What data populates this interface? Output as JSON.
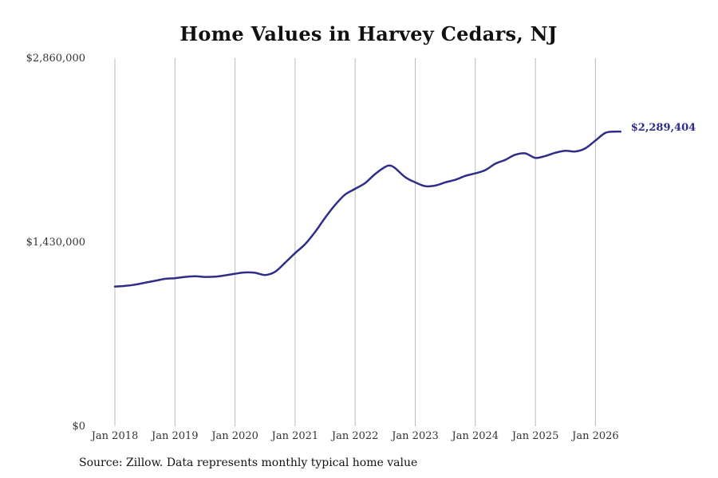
{
  "colors": {
    "line": "#2e2d88",
    "grid": "#bbbbbb",
    "text": "#333333"
  },
  "chart_data": {
    "type": "line",
    "title": "Home Values in Harvey Cedars, NJ",
    "xlabel": "",
    "ylabel": "",
    "ylim": [
      0,
      2860000
    ],
    "y_ticks": [
      {
        "value": 0,
        "label": "$0"
      },
      {
        "value": 1430000,
        "label": "$1,430,000"
      },
      {
        "value": 2860000,
        "label": "$2,860,000"
      }
    ],
    "x_ticks": [
      {
        "value": 2018,
        "label": "Jan 2018"
      },
      {
        "value": 2019,
        "label": "Jan 2019"
      },
      {
        "value": 2020,
        "label": "Jan 2020"
      },
      {
        "value": 2021,
        "label": "Jan 2021"
      },
      {
        "value": 2022,
        "label": "Jan 2022"
      },
      {
        "value": 2023,
        "label": "Jan 2023"
      },
      {
        "value": 2024,
        "label": "Jan 2024"
      },
      {
        "value": 2025,
        "label": "Jan 2025"
      },
      {
        "value": 2026,
        "label": "Jan 2026"
      }
    ],
    "grid": "vertical",
    "legend": "none",
    "end_label": "$2,289,404",
    "series": [
      {
        "x": [
          "2018-01",
          "2018-03",
          "2018-05",
          "2018-07",
          "2018-09",
          "2018-11",
          "2019-01",
          "2019-03",
          "2019-05",
          "2019-07",
          "2019-09",
          "2019-11",
          "2020-01",
          "2020-03",
          "2020-05",
          "2020-07",
          "2020-09",
          "2020-11",
          "2021-01",
          "2021-03",
          "2021-05",
          "2021-07",
          "2021-09",
          "2021-11",
          "2022-01",
          "2022-03",
          "2022-05",
          "2022-07",
          "2022-08",
          "2022-09",
          "2022-11",
          "2023-01",
          "2023-03",
          "2023-05",
          "2023-07",
          "2023-09",
          "2023-11",
          "2024-01",
          "2024-03",
          "2024-05",
          "2024-07",
          "2024-09",
          "2024-11",
          "2025-01",
          "2025-03",
          "2025-05",
          "2025-07",
          "2025-09",
          "2025-11",
          "2026-01",
          "2026-03",
          "2026-05",
          "2026-06"
        ],
        "values": [
          1085000,
          1090000,
          1100000,
          1115000,
          1130000,
          1145000,
          1150000,
          1160000,
          1165000,
          1160000,
          1162000,
          1172000,
          1185000,
          1195000,
          1192000,
          1175000,
          1200000,
          1270000,
          1345000,
          1415000,
          1510000,
          1620000,
          1720000,
          1800000,
          1845000,
          1890000,
          1960000,
          2015000,
          2025000,
          2005000,
          1935000,
          1895000,
          1865000,
          1870000,
          1895000,
          1915000,
          1945000,
          1965000,
          1990000,
          2040000,
          2070000,
          2110000,
          2120000,
          2085000,
          2100000,
          2125000,
          2140000,
          2135000,
          2160000,
          2220000,
          2280000,
          2289404,
          2289404
        ]
      }
    ]
  },
  "source_note": "Source: Zillow. Data represents monthly typical home value"
}
